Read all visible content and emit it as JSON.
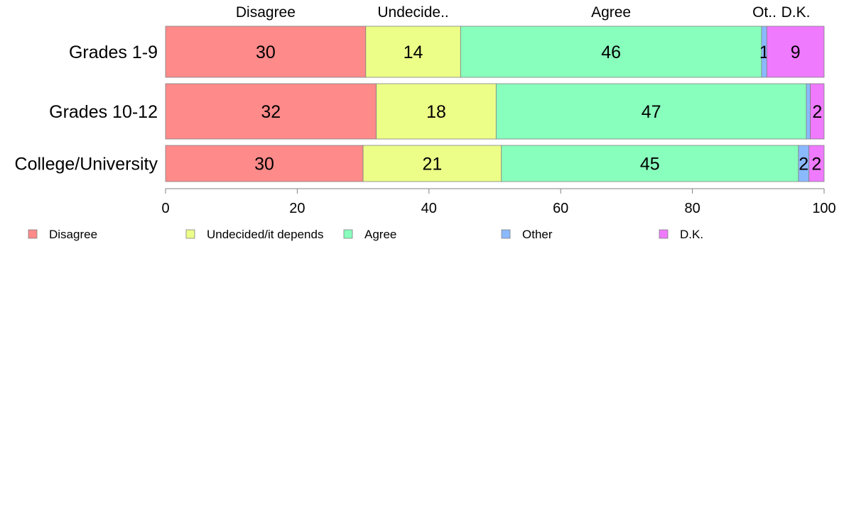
{
  "chart_data": {
    "type": "bar",
    "orientation": "horizontal",
    "stacked": true,
    "categories": [
      "Grades 1-9",
      "Grades 10-12",
      "College/University"
    ],
    "series": [
      {
        "name": "Disagree",
        "color": "#ff8a8a",
        "values": [
          30.4,
          32.0,
          30.0
        ],
        "labels": [
          "30",
          "32",
          "30"
        ]
      },
      {
        "name": "Undecided/it depends",
        "color": "#edfe88",
        "values": [
          14.4,
          18.2,
          21.0
        ],
        "labels": [
          "14",
          "18",
          "21"
        ]
      },
      {
        "name": "Agree",
        "color": "#89ffbd",
        "values": [
          45.7,
          47.1,
          45.1
        ],
        "labels": [
          "46",
          "47",
          "45"
        ]
      },
      {
        "name": "Other",
        "color": "#8ab9fe",
        "values": [
          0.8,
          0.6,
          1.6
        ],
        "labels": [
          "1",
          "",
          "2"
        ]
      },
      {
        "name": "D.K.",
        "color": "#ef7afe",
        "values": [
          8.7,
          2.1,
          2.3
        ],
        "labels": [
          "9",
          "2",
          "2"
        ]
      }
    ],
    "top_labels": [
      "Disagree",
      "Undecide..",
      "Agree",
      "Ot..",
      "D.K."
    ],
    "xlim": [
      0,
      100
    ],
    "xticks": [
      0,
      20,
      40,
      60,
      80,
      100
    ],
    "legend": {
      "position": "bottom",
      "entries": [
        "Disagree",
        "Undecided/it depends",
        "Agree",
        "Other",
        "D.K."
      ]
    }
  }
}
